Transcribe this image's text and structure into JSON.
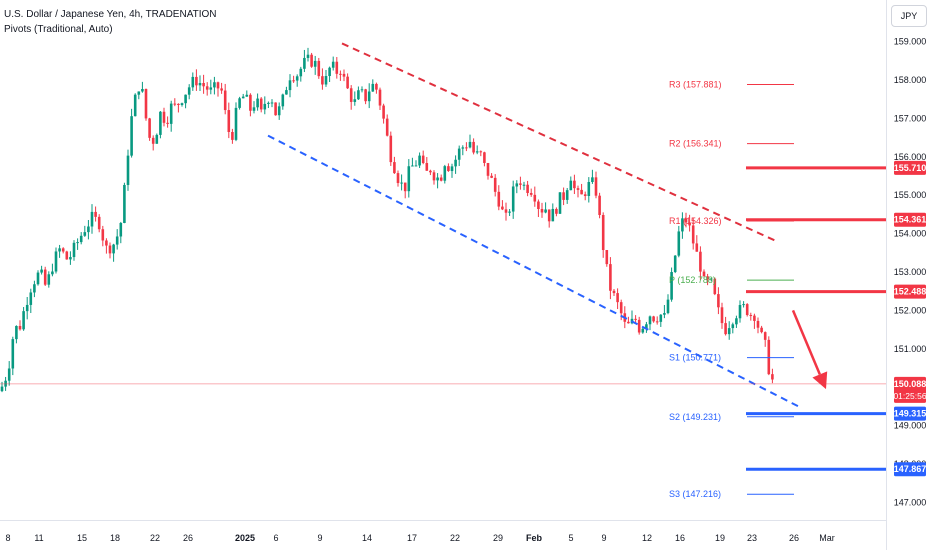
{
  "header": {
    "symbol_line": "U.S. Dollar / Japanese Yen, 4h, TRADENATION",
    "indicator_line": "Pivots (Traditional, Auto)",
    "currency": "JPY"
  },
  "chart_data": {
    "type": "candlestick",
    "title": "U.S. Dollar / Japanese Yen, 4h, TRADENATION",
    "x_tick_labels": [
      "8",
      "11",
      "15",
      "18",
      "22",
      "26",
      "2025",
      "6",
      "9",
      "14",
      "17",
      "22",
      "29",
      "Feb",
      "5",
      "9",
      "12",
      "16",
      "19",
      "23",
      "26",
      "Mar"
    ],
    "y_ticks": [
      147.0,
      148.0,
      149.0,
      150.0,
      151.0,
      152.0,
      153.0,
      154.0,
      155.0,
      156.0,
      157.0,
      158.0,
      159.0
    ],
    "y_tick_labels": [
      "147.000",
      "148.000",
      "149.000",
      "150.000",
      "151.000",
      "152.000",
      "153.000",
      "154.000",
      "155.000",
      "156.000",
      "157.000",
      "158.000",
      "159.000"
    ],
    "ylim": [
      146.55,
      159.45
    ],
    "grid": false,
    "price_path": [
      [
        0,
        149.9
      ],
      [
        5,
        150.2
      ],
      [
        9,
        150.6
      ],
      [
        14,
        151.5
      ],
      [
        20,
        151.6
      ],
      [
        26,
        152.2
      ],
      [
        32,
        152.7
      ],
      [
        40,
        153.0
      ],
      [
        46,
        152.6
      ],
      [
        54,
        153.3
      ],
      [
        60,
        153.6
      ],
      [
        68,
        153.3
      ],
      [
        76,
        153.7
      ],
      [
        84,
        154.1
      ],
      [
        92,
        154.4
      ],
      [
        99,
        154.3
      ],
      [
        106,
        153.6
      ],
      [
        113,
        153.7
      ],
      [
        120,
        154.1
      ],
      [
        126,
        155.5
      ],
      [
        130,
        156.8
      ],
      [
        134,
        157.3
      ],
      [
        137,
        157.8
      ],
      [
        141,
        157.9
      ],
      [
        146,
        157.0
      ],
      [
        151,
        156.3
      ],
      [
        156,
        156.6
      ],
      [
        161,
        157.2
      ],
      [
        166,
        156.9
      ],
      [
        171,
        157.3
      ],
      [
        176,
        157.3
      ],
      [
        181,
        157.5
      ],
      [
        186,
        157.7
      ],
      [
        191,
        157.9
      ],
      [
        196,
        158.0
      ],
      [
        201,
        157.9
      ],
      [
        206,
        157.8
      ],
      [
        211,
        157.7
      ],
      [
        216,
        157.8
      ],
      [
        221,
        157.8
      ],
      [
        226,
        157.0
      ],
      [
        231,
        156.4
      ],
      [
        236,
        157.1
      ],
      [
        241,
        157.6
      ],
      [
        246,
        157.5
      ],
      [
        251,
        157.2
      ],
      [
        256,
        157.5
      ],
      [
        261,
        157.1
      ],
      [
        266,
        157.5
      ],
      [
        271,
        157.6
      ],
      [
        276,
        157.1
      ],
      [
        281,
        157.3
      ],
      [
        286,
        157.8
      ],
      [
        291,
        158.2
      ],
      [
        296,
        158.1
      ],
      [
        301,
        158.3
      ],
      [
        306,
        158.5
      ],
      [
        311,
        158.5
      ],
      [
        316,
        158.4
      ],
      [
        321,
        158.0
      ],
      [
        326,
        158.0
      ],
      [
        331,
        158.4
      ],
      [
        336,
        158.2
      ],
      [
        341,
        158.3
      ],
      [
        345,
        157.9
      ],
      [
        350,
        157.6
      ],
      [
        355,
        157.4
      ],
      [
        360,
        157.7
      ],
      [
        365,
        157.5
      ],
      [
        370,
        157.8
      ],
      [
        375,
        157.9
      ],
      [
        380,
        157.4
      ],
      [
        385,
        156.8
      ],
      [
        390,
        156.1
      ],
      [
        395,
        155.7
      ],
      [
        400,
        155.3
      ],
      [
        405,
        155.2
      ],
      [
        410,
        155.7
      ],
      [
        415,
        155.8
      ],
      [
        420,
        156.0
      ],
      [
        425,
        155.5
      ],
      [
        430,
        155.7
      ],
      [
        435,
        155.5
      ],
      [
        440,
        155.4
      ],
      [
        445,
        155.9
      ],
      [
        450,
        155.7
      ],
      [
        455,
        155.9
      ],
      [
        460,
        156.2
      ],
      [
        465,
        156.3
      ],
      [
        470,
        156.4
      ],
      [
        475,
        156.0
      ],
      [
        480,
        156.1
      ],
      [
        485,
        155.7
      ],
      [
        490,
        155.5
      ],
      [
        495,
        155.1
      ],
      [
        500,
        154.8
      ],
      [
        505,
        154.3
      ],
      [
        510,
        154.7
      ],
      [
        515,
        155.3
      ],
      [
        520,
        155.4
      ],
      [
        525,
        155.2
      ],
      [
        530,
        155.2
      ],
      [
        535,
        155.0
      ],
      [
        540,
        154.6
      ],
      [
        545,
        154.7
      ],
      [
        550,
        154.4
      ],
      [
        555,
        154.6
      ],
      [
        560,
        154.9
      ],
      [
        565,
        155.0
      ],
      [
        570,
        155.6
      ],
      [
        575,
        155.1
      ],
      [
        580,
        154.9
      ],
      [
        585,
        155.1
      ],
      [
        590,
        155.3
      ],
      [
        595,
        155.3
      ],
      [
        600,
        154.3
      ],
      [
        605,
        153.3
      ],
      [
        610,
        152.6
      ],
      [
        615,
        152.3
      ],
      [
        620,
        152.0
      ],
      [
        625,
        151.6
      ],
      [
        630,
        151.6
      ],
      [
        635,
        151.8
      ],
      [
        640,
        151.5
      ],
      [
        645,
        151.7
      ],
      [
        650,
        151.9
      ],
      [
        655,
        151.8
      ],
      [
        660,
        151.9
      ],
      [
        665,
        151.8
      ],
      [
        670,
        152.6
      ],
      [
        675,
        153.4
      ],
      [
        680,
        154.2
      ],
      [
        685,
        154.4
      ],
      [
        690,
        154.1
      ],
      [
        695,
        153.6
      ],
      [
        700,
        153.2
      ],
      [
        705,
        152.6
      ],
      [
        710,
        152.8
      ],
      [
        715,
        152.3
      ],
      [
        720,
        151.8
      ],
      [
        725,
        151.5
      ],
      [
        730,
        151.7
      ],
      [
        735,
        151.9
      ],
      [
        740,
        152.0
      ],
      [
        745,
        152.1
      ],
      [
        750,
        151.9
      ],
      [
        755,
        151.9
      ],
      [
        760,
        151.4
      ],
      [
        765,
        151.1
      ],
      [
        770,
        150.3
      ],
      [
        774,
        150.09
      ]
    ],
    "pivots": [
      {
        "label": "R3 (157.881)",
        "value": 157.881,
        "color": "#f23645"
      },
      {
        "label": "R2 (156.341)",
        "value": 156.341,
        "color": "#f23645"
      },
      {
        "label": "R1 (154.326)",
        "value": 154.326,
        "color": "#f23645"
      },
      {
        "label": "P (152.788)",
        "value": 152.788,
        "color": "#4caf50"
      },
      {
        "label": "S1 (150.771)",
        "value": 150.771,
        "color": "#2962ff"
      },
      {
        "label": "S2 (149.231)",
        "value": 149.231,
        "color": "#2962ff"
      },
      {
        "label": "S3 (147.216)",
        "value": 147.216,
        "color": "#2962ff"
      }
    ],
    "horizontal_levels": [
      {
        "value": 155.71,
        "label": "155.710",
        "color": "#f23645"
      },
      {
        "value": 154.361,
        "label": "154.361",
        "color": "#f23645"
      },
      {
        "value": 152.488,
        "label": "152.488",
        "color": "#f23645"
      },
      {
        "value": 149.315,
        "label": "149.315",
        "color": "#2962ff"
      },
      {
        "value": 147.867,
        "label": "147.867",
        "color": "#2962ff"
      }
    ],
    "channel": {
      "upper": {
        "start": [
          342,
          158.95
        ],
        "end": [
          775,
          153.82
        ],
        "color": "#e0303e"
      },
      "lower": {
        "start": [
          268,
          156.55
        ],
        "end": [
          800,
          149.48
        ],
        "color": "#2962ff"
      }
    },
    "arrow": {
      "from": [
        793,
        152.0
      ],
      "to": [
        826,
        149.95
      ],
      "color": "#f23645",
      "direction": "down"
    },
    "last_price": {
      "value": 150.088,
      "label": "150.088",
      "countdown": "01:25:56",
      "color": "#f23645"
    }
  }
}
